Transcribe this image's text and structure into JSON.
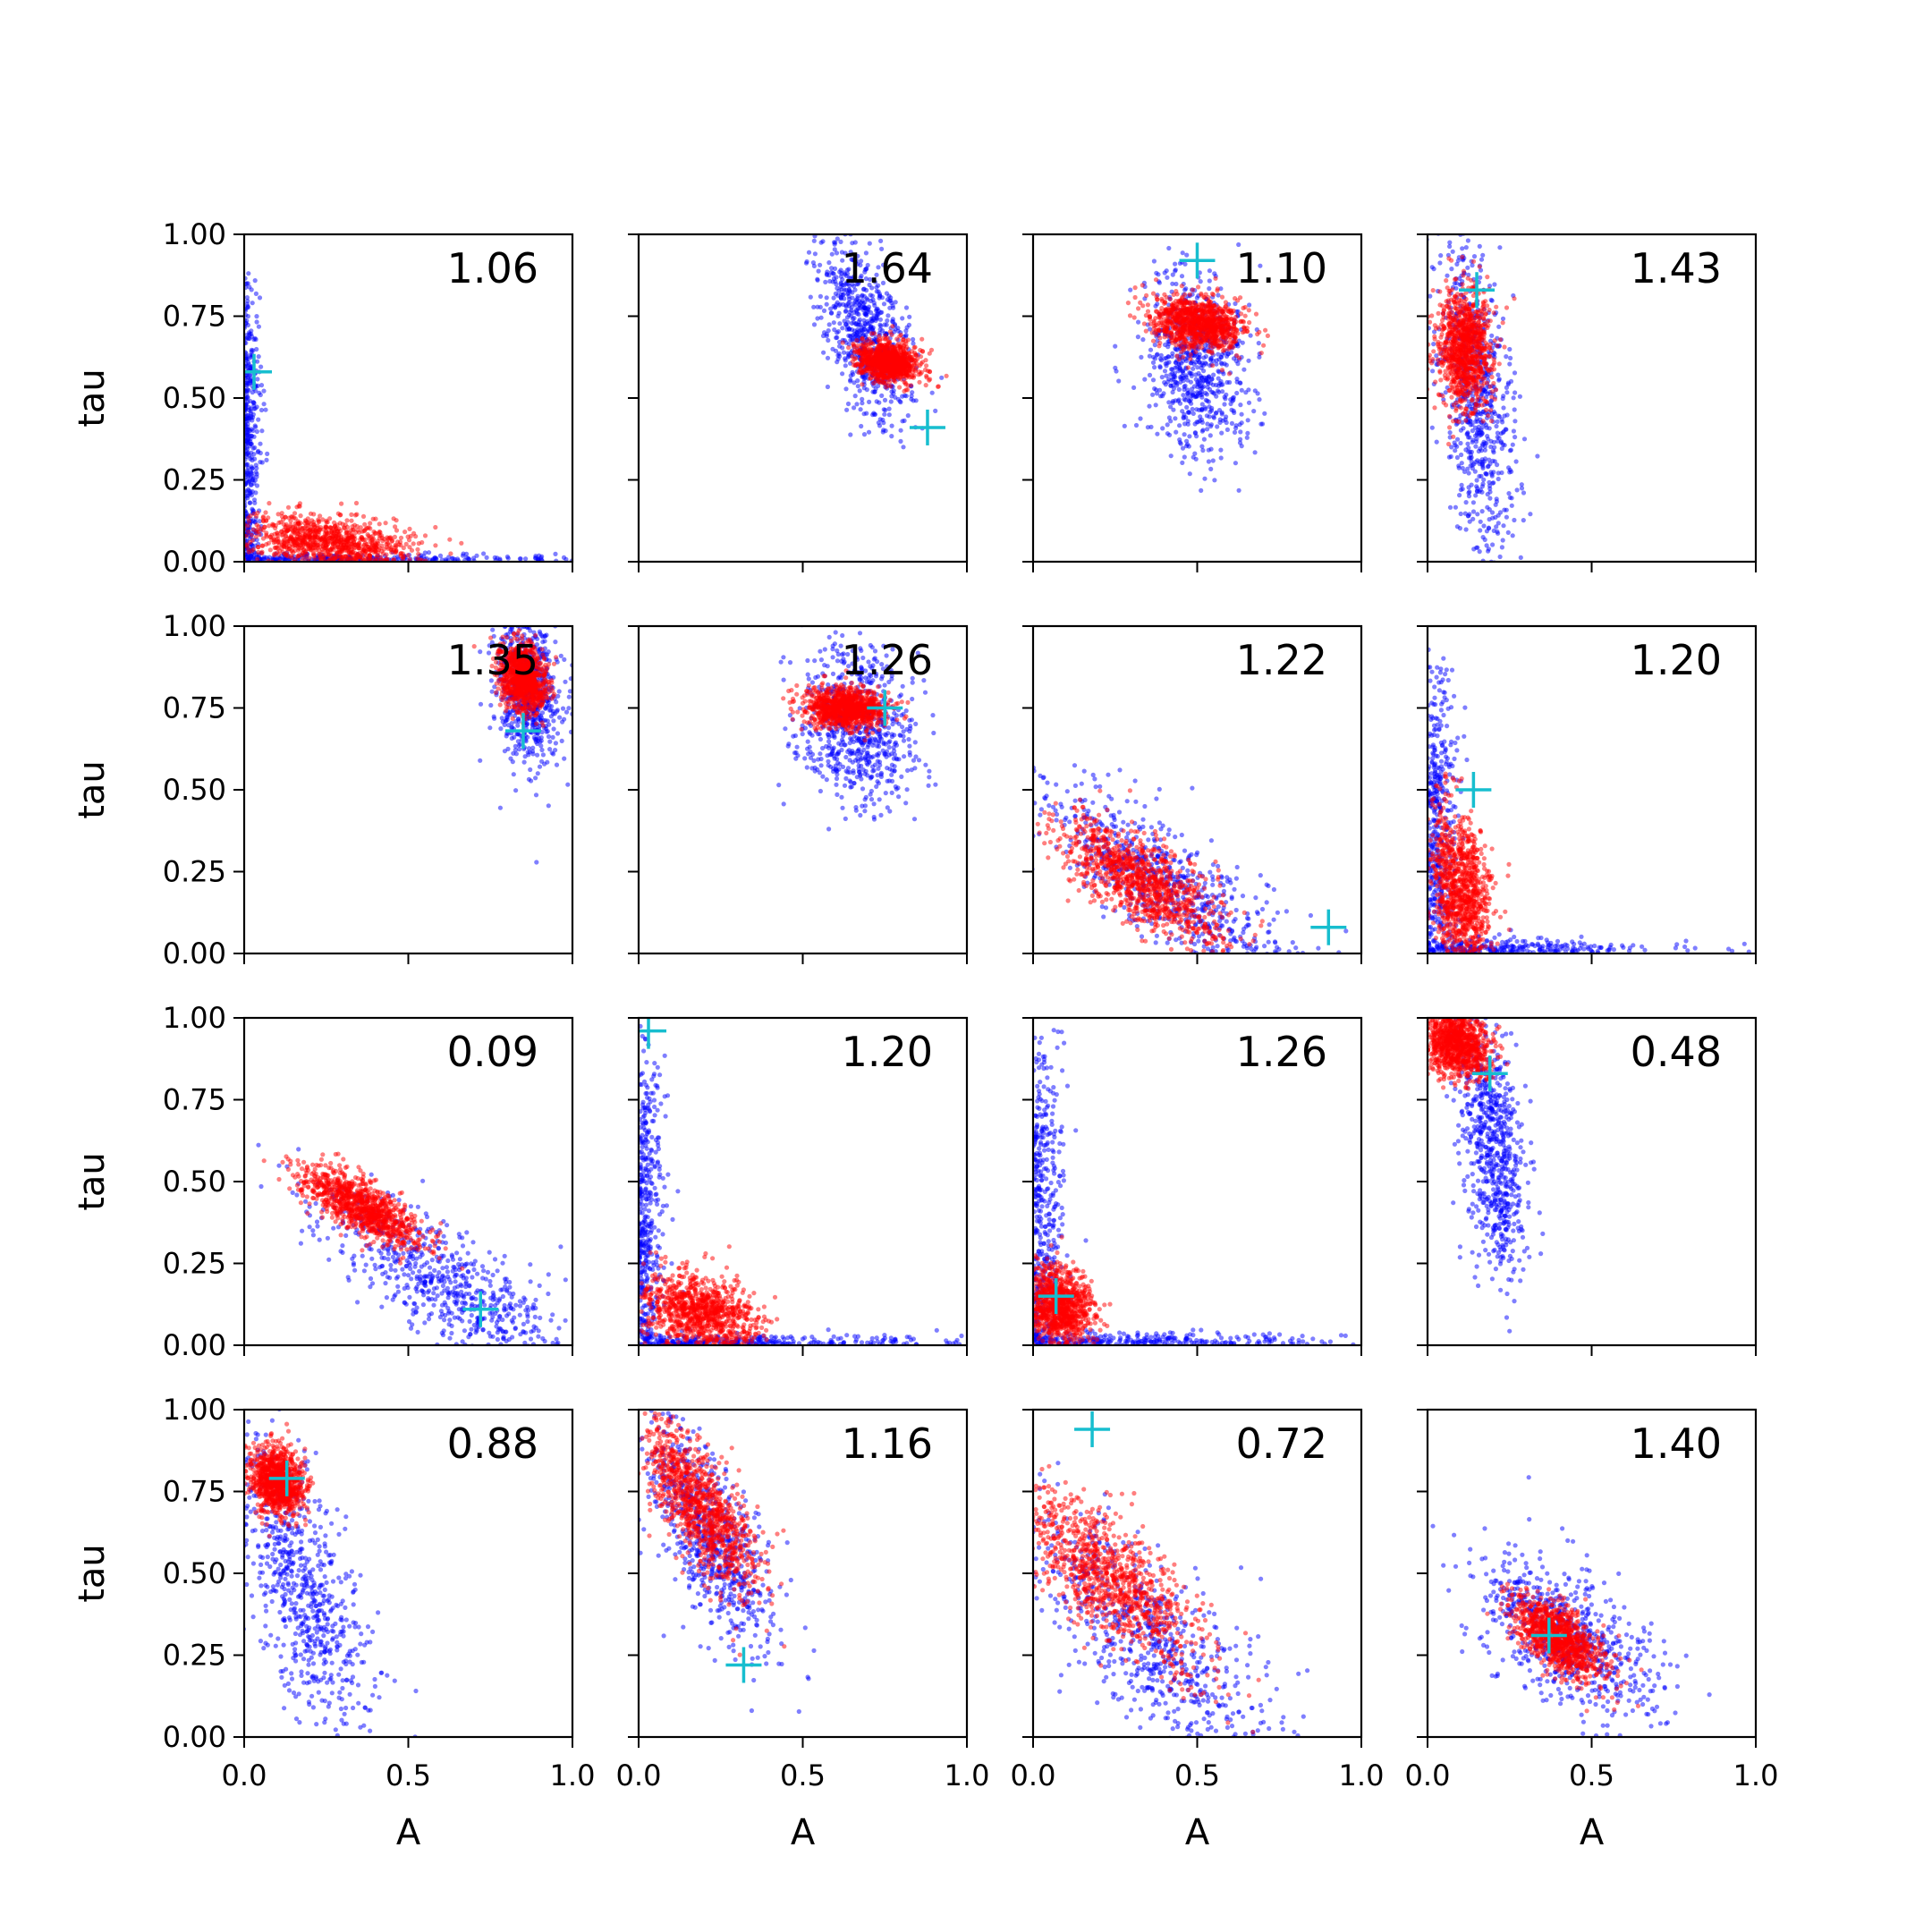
{
  "colors": {
    "series_blue": "#0000ff",
    "series_red": "#ff0000",
    "marker_cyan": "#17becf",
    "axes": "#000000"
  },
  "chart_data": {
    "type": "scatter",
    "layout": "4x4 grid of scatter plots with shared axes",
    "xlabel": "A",
    "ylabel": "tau",
    "xlim": [
      0,
      1
    ],
    "ylim": [
      0,
      1
    ],
    "xticks": [
      "0.0",
      "0.5",
      "1.0"
    ],
    "yticks": [
      "0.00",
      "0.25",
      "0.50",
      "0.75",
      "1.00"
    ],
    "grid": false,
    "panels": [
      {
        "annotation": "1.06",
        "marker": [
          0.03,
          0.58
        ],
        "blue": {
          "shape": "L",
          "ax": 0.025,
          "ay": 0.5,
          "bx": 0.5,
          "by": 0.01,
          "n": 700
        },
        "red": {
          "cx": 0.26,
          "cy": 0.06,
          "sx": 0.13,
          "sy": 0.045,
          "rho": -0.3,
          "n": 1000
        }
      },
      {
        "annotation": "1.64",
        "marker": [
          0.88,
          0.41
        ],
        "blue": {
          "cx": 0.69,
          "cy": 0.7,
          "sx": 0.07,
          "sy": 0.14,
          "rho": -0.55,
          "n": 700
        },
        "red": {
          "cx": 0.76,
          "cy": 0.61,
          "sx": 0.045,
          "sy": 0.03,
          "rho": -0.2,
          "n": 1000
        }
      },
      {
        "annotation": "1.10",
        "marker": [
          0.5,
          0.92
        ],
        "blue": {
          "cx": 0.5,
          "cy": 0.6,
          "sx": 0.08,
          "sy": 0.14,
          "rho": -0.1,
          "n": 700
        },
        "red": {
          "cx": 0.5,
          "cy": 0.73,
          "sx": 0.07,
          "sy": 0.04,
          "rho": -0.2,
          "n": 1000
        }
      },
      {
        "annotation": "1.43",
        "marker": [
          0.15,
          0.83
        ],
        "blue": {
          "cx": 0.15,
          "cy": 0.5,
          "sx": 0.06,
          "sy": 0.26,
          "rho": -0.45,
          "n": 700
        },
        "red": {
          "cx": 0.11,
          "cy": 0.65,
          "sx": 0.04,
          "sy": 0.09,
          "rho": -0.1,
          "n": 1000
        }
      },
      {
        "annotation": "1.35",
        "marker": [
          0.85,
          0.68
        ],
        "blue": {
          "cx": 0.86,
          "cy": 0.82,
          "sx": 0.05,
          "sy": 0.12,
          "rho": -0.2,
          "n": 700
        },
        "red": {
          "cx": 0.85,
          "cy": 0.84,
          "sx": 0.035,
          "sy": 0.05,
          "rho": -0.2,
          "n": 1000
        }
      },
      {
        "annotation": "1.26",
        "marker": [
          0.75,
          0.75
        ],
        "blue": {
          "cx": 0.66,
          "cy": 0.7,
          "sx": 0.09,
          "sy": 0.12,
          "rho": -0.1,
          "n": 700
        },
        "red": {
          "cx": 0.63,
          "cy": 0.75,
          "sx": 0.06,
          "sy": 0.03,
          "rho": -0.1,
          "n": 1000
        }
      },
      {
        "annotation": "1.22",
        "marker": [
          0.9,
          0.08
        ],
        "blue": {
          "cx": 0.4,
          "cy": 0.22,
          "sx": 0.2,
          "sy": 0.15,
          "rho": -0.8,
          "n": 700
        },
        "red": {
          "cx": 0.33,
          "cy": 0.22,
          "sx": 0.12,
          "sy": 0.09,
          "rho": -0.7,
          "n": 1000
        }
      },
      {
        "annotation": "1.20",
        "marker": [
          0.14,
          0.5
        ],
        "blue": {
          "shape": "L",
          "ax": 0.05,
          "ay": 0.5,
          "bx": 0.35,
          "by": 0.02,
          "n": 700
        },
        "red": {
          "cx": 0.1,
          "cy": 0.2,
          "sx": 0.05,
          "sy": 0.12,
          "rho": -0.3,
          "n": 1000
        }
      },
      {
        "annotation": "0.09",
        "marker": [
          0.72,
          0.11
        ],
        "blue": {
          "cx": 0.62,
          "cy": 0.18,
          "sx": 0.2,
          "sy": 0.14,
          "rho": -0.8,
          "n": 700
        },
        "red": {
          "cx": 0.36,
          "cy": 0.42,
          "sx": 0.09,
          "sy": 0.06,
          "rho": -0.75,
          "n": 1000
        }
      },
      {
        "annotation": "1.20",
        "marker": [
          0.03,
          0.96
        ],
        "blue": {
          "shape": "L",
          "ax": 0.04,
          "ay": 0.5,
          "bx": 0.45,
          "by": 0.015,
          "n": 700
        },
        "red": {
          "cx": 0.19,
          "cy": 0.1,
          "sx": 0.09,
          "sy": 0.06,
          "rho": -0.3,
          "n": 1000
        }
      },
      {
        "annotation": "1.26",
        "marker": [
          0.07,
          0.15
        ],
        "blue": {
          "shape": "L",
          "ax": 0.05,
          "ay": 0.5,
          "bx": 0.45,
          "by": 0.02,
          "n": 700
        },
        "red": {
          "cx": 0.08,
          "cy": 0.12,
          "sx": 0.05,
          "sy": 0.06,
          "rho": -0.2,
          "n": 1000
        }
      },
      {
        "annotation": "0.48",
        "marker": [
          0.19,
          0.83
        ],
        "blue": {
          "cx": 0.2,
          "cy": 0.6,
          "sx": 0.05,
          "sy": 0.2,
          "rho": -0.4,
          "n": 700
        },
        "red": {
          "cx": 0.09,
          "cy": 0.92,
          "sx": 0.05,
          "sy": 0.05,
          "rho": -0.2,
          "n": 1000
        }
      },
      {
        "annotation": "0.88",
        "marker": [
          0.13,
          0.79
        ],
        "blue": {
          "cx": 0.18,
          "cy": 0.45,
          "sx": 0.1,
          "sy": 0.22,
          "rho": -0.6,
          "n": 700
        },
        "red": {
          "cx": 0.1,
          "cy": 0.78,
          "sx": 0.04,
          "sy": 0.05,
          "rho": -0.2,
          "n": 1000
        }
      },
      {
        "annotation": "1.16",
        "marker": [
          0.32,
          0.22
        ],
        "blue": {
          "cx": 0.21,
          "cy": 0.62,
          "sx": 0.1,
          "sy": 0.18,
          "rho": -0.7,
          "n": 700
        },
        "red": {
          "cx": 0.19,
          "cy": 0.7,
          "sx": 0.09,
          "sy": 0.13,
          "rho": -0.75,
          "n": 1000
        }
      },
      {
        "annotation": "0.72",
        "marker": [
          0.18,
          0.94
        ],
        "blue": {
          "cx": 0.35,
          "cy": 0.3,
          "sx": 0.2,
          "sy": 0.2,
          "rho": -0.75,
          "n": 700
        },
        "red": {
          "cx": 0.24,
          "cy": 0.48,
          "sx": 0.14,
          "sy": 0.14,
          "rho": -0.75,
          "n": 1000
        }
      },
      {
        "annotation": "1.40",
        "marker": [
          0.37,
          0.31
        ],
        "blue": {
          "cx": 0.42,
          "cy": 0.31,
          "sx": 0.14,
          "sy": 0.13,
          "rho": -0.6,
          "n": 700
        },
        "red": {
          "cx": 0.4,
          "cy": 0.3,
          "sx": 0.07,
          "sy": 0.06,
          "rho": -0.6,
          "n": 1000
        }
      }
    ]
  }
}
